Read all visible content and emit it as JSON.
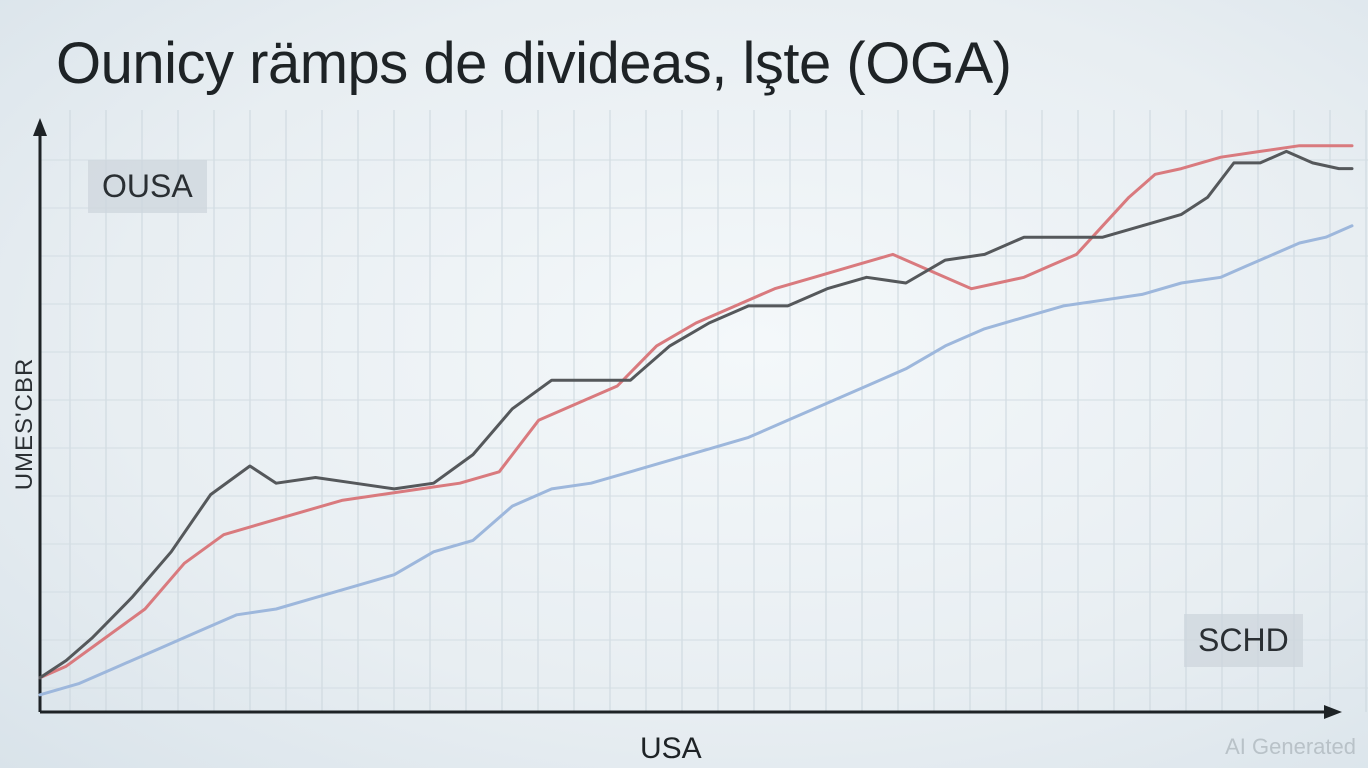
{
  "chart_data": {
    "type": "line",
    "title": "Ounicy rämps de divideas, lşte (OGA)",
    "xlabel": "USA",
    "ylabel": "UMES'CBR",
    "annotations": {
      "top_left": "OUSA",
      "bottom_right": "SCHD"
    },
    "grid": true,
    "xlim": [
      0,
      100
    ],
    "ylim": [
      0,
      100
    ],
    "series": [
      {
        "color": "#d97a7e",
        "x": [
          0,
          2,
          5,
          8,
          11,
          14,
          17,
          20,
          23,
          26,
          29,
          32,
          35,
          38,
          41,
          44,
          47,
          50,
          53,
          56,
          59,
          62,
          65,
          68,
          71,
          73,
          75,
          77,
          79,
          81,
          83,
          85,
          87,
          90,
          93,
          96,
          98,
          100
        ],
        "y": [
          6,
          8,
          13,
          18,
          26,
          31,
          33,
          35,
          37,
          38,
          39,
          40,
          42,
          51,
          54,
          57,
          64,
          68,
          71,
          74,
          76,
          78,
          80,
          77,
          74,
          75,
          76,
          78,
          80,
          85,
          90,
          94,
          95,
          97,
          98,
          99,
          99,
          99
        ]
      },
      {
        "color": "#55585b",
        "x": [
          0,
          2,
          4,
          7,
          10,
          13,
          16,
          18,
          21,
          24,
          27,
          30,
          33,
          36,
          39,
          42,
          45,
          48,
          51,
          54,
          57,
          60,
          63,
          66,
          69,
          72,
          75,
          78,
          81,
          84,
          87,
          89,
          91,
          93,
          95,
          97,
          99,
          100
        ],
        "y": [
          6,
          9,
          13,
          20,
          28,
          38,
          43,
          40,
          41,
          40,
          39,
          40,
          45,
          53,
          58,
          58,
          58,
          64,
          68,
          71,
          71,
          74,
          76,
          75,
          79,
          80,
          83,
          83,
          83,
          85,
          87,
          90,
          96,
          96,
          98,
          96,
          95,
          95
        ]
      },
      {
        "color": "#9db7dc",
        "x": [
          0,
          3,
          6,
          9,
          12,
          15,
          18,
          21,
          24,
          27,
          30,
          33,
          36,
          39,
          42,
          45,
          48,
          51,
          54,
          57,
          60,
          63,
          66,
          69,
          72,
          75,
          78,
          81,
          84,
          87,
          90,
          92,
          94,
          96,
          98,
          100
        ],
        "y": [
          3,
          5,
          8,
          11,
          14,
          17,
          18,
          20,
          22,
          24,
          28,
          30,
          36,
          39,
          40,
          42,
          44,
          46,
          48,
          51,
          54,
          57,
          60,
          64,
          67,
          69,
          71,
          72,
          73,
          75,
          76,
          78,
          80,
          82,
          83,
          85
        ]
      }
    ]
  }
}
